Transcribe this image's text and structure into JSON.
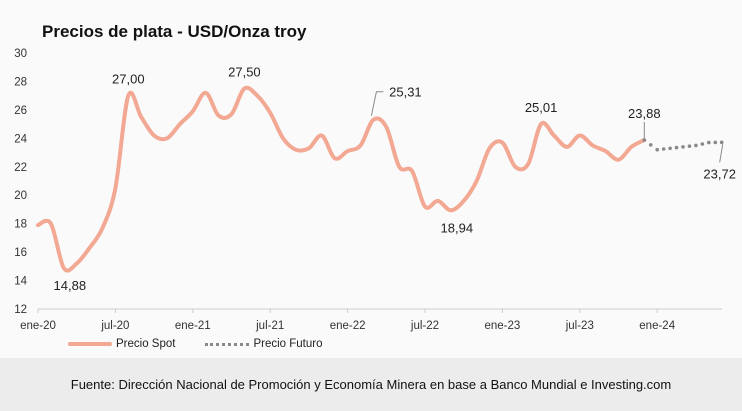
{
  "chart_data": {
    "type": "line",
    "title": "Precios de plata - USD/Onza troy",
    "xlabel": "",
    "ylabel": "",
    "ylim": [
      12,
      30
    ],
    "yticks": [
      "12",
      "14",
      "16",
      "18",
      "20",
      "22",
      "24",
      "26",
      "28",
      "30"
    ],
    "xticks": [
      "ene-20",
      "jul-20",
      "ene-21",
      "jul-21",
      "ene-22",
      "jul-22",
      "ene-23",
      "jul-23",
      "ene-24"
    ],
    "x_start": "2020-01",
    "x_unit": "month",
    "series": [
      {
        "name": "Precio Spot",
        "color": "#f2a893",
        "start_index": 0,
        "values": [
          17.9,
          18.0,
          14.88,
          15.2,
          16.3,
          17.7,
          20.5,
          27.0,
          25.5,
          24.2,
          24.0,
          25.0,
          25.9,
          27.2,
          25.6,
          25.7,
          27.5,
          27.0,
          25.8,
          24.0,
          23.2,
          23.3,
          24.2,
          22.6,
          23.1,
          23.5,
          25.31,
          24.8,
          22.0,
          21.7,
          19.2,
          19.6,
          18.94,
          19.6,
          21.0,
          23.3,
          23.7,
          22.0,
          22.2,
          25.01,
          24.2,
          23.4,
          24.2,
          23.5,
          23.1,
          22.5,
          23.4,
          23.88
        ]
      },
      {
        "name": "Precio Futuro",
        "color": "#888888",
        "start_index": 47,
        "values": [
          23.88,
          23.2,
          23.3,
          23.4,
          23.5,
          23.7,
          23.72
        ]
      }
    ],
    "annotations": [
      {
        "index": 2,
        "value": 14.88,
        "text": "14,88",
        "pos": "below"
      },
      {
        "index": 7,
        "value": 27.0,
        "text": "27,00",
        "pos": "above"
      },
      {
        "index": 16,
        "value": 27.5,
        "text": "27,50",
        "pos": "above"
      },
      {
        "index": 26,
        "value": 25.31,
        "text": "25,31",
        "pos": "callout-right"
      },
      {
        "index": 32,
        "value": 18.94,
        "text": "18,94",
        "pos": "below"
      },
      {
        "index": 39,
        "value": 25.01,
        "text": "25,01",
        "pos": "above"
      },
      {
        "index": 47,
        "value": 23.88,
        "text": "23,88",
        "pos": "callout-up"
      },
      {
        "index": 53,
        "value": 23.72,
        "text": "23,72",
        "pos": "callout-down"
      }
    ],
    "grid": false,
    "legend": "bottom-left"
  },
  "legend": {
    "spot": "Precio Spot",
    "futuro": "Precio Futuro"
  },
  "footer": "Fuente: Dirección Nacional de Promoción y Economía Minera en base a Banco Mundial e Investing.com"
}
